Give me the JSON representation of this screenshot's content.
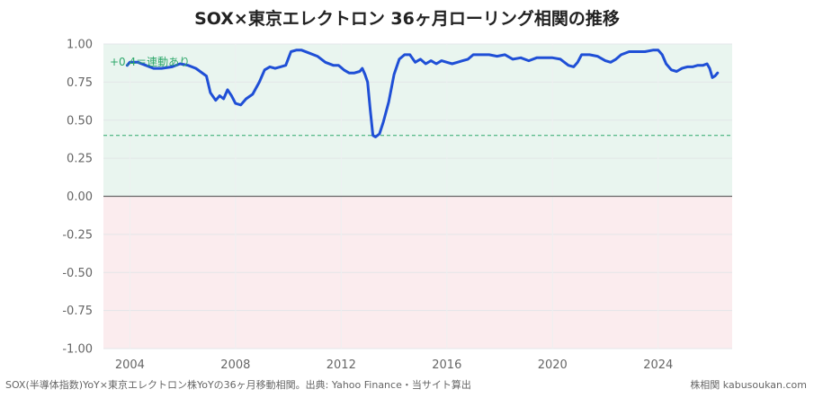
{
  "chart_data": {
    "type": "line",
    "title": "SOX×東京エレクトロン 36ヶ月ローリング相関の推移",
    "xlabel": "",
    "ylabel": "",
    "xlim": [
      2003.0,
      2026.8
    ],
    "ylim": [
      -1.0,
      1.0
    ],
    "x_ticks": [
      2004,
      2008,
      2012,
      2016,
      2020,
      2024
    ],
    "y_ticks": [
      1.0,
      0.75,
      0.5,
      0.25,
      0.0,
      -0.25,
      -0.5,
      -0.75,
      -1.0
    ],
    "y_tick_labels": [
      "1.00",
      "0.75",
      "0.50",
      "0.25",
      "0.00",
      "-0.25",
      "-0.50",
      "-0.75",
      "-1.00"
    ],
    "grid": true,
    "threshold": {
      "value": 0.4,
      "label": "+0.4＝連動あり",
      "color": "#2ea86b"
    },
    "zero_line": 0.0,
    "positive_zone_color": "#e9f5ef",
    "negative_zone_color": "#fbecee",
    "series": [
      {
        "color": "#1f4fd6",
        "x": [
          2003.9,
          2004.0,
          2004.3,
          2004.6,
          2004.9,
          2005.2,
          2005.6,
          2005.9,
          2006.2,
          2006.5,
          2006.9,
          2007.05,
          2007.25,
          2007.4,
          2007.55,
          2007.7,
          2007.85,
          2008.0,
          2008.2,
          2008.4,
          2008.65,
          2008.9,
          2009.1,
          2009.3,
          2009.5,
          2009.7,
          2009.9,
          2010.1,
          2010.3,
          2010.5,
          2010.8,
          2011.1,
          2011.4,
          2011.7,
          2011.9,
          2012.1,
          2012.3,
          2012.5,
          2012.7,
          2012.8,
          2012.9,
          2013.0,
          2013.1,
          2013.2,
          2013.3,
          2013.45,
          2013.6,
          2013.8,
          2014.0,
          2014.2,
          2014.4,
          2014.6,
          2014.8,
          2015.0,
          2015.2,
          2015.4,
          2015.6,
          2015.8,
          2016.0,
          2016.2,
          2016.4,
          2016.6,
          2016.8,
          2017.0,
          2017.3,
          2017.6,
          2017.9,
          2018.2,
          2018.5,
          2018.8,
          2019.1,
          2019.4,
          2019.7,
          2020.0,
          2020.3,
          2020.6,
          2020.8,
          2020.95,
          2021.1,
          2021.4,
          2021.7,
          2022.0,
          2022.2,
          2022.4,
          2022.6,
          2022.9,
          2023.2,
          2023.5,
          2023.8,
          2024.0,
          2024.15,
          2024.3,
          2024.5,
          2024.7,
          2024.9,
          2025.1,
          2025.3,
          2025.5,
          2025.7,
          2025.85,
          2025.95,
          2026.05,
          2026.15,
          2026.25
        ],
        "y": [
          0.86,
          0.88,
          0.88,
          0.86,
          0.84,
          0.84,
          0.85,
          0.87,
          0.86,
          0.84,
          0.79,
          0.68,
          0.63,
          0.66,
          0.64,
          0.7,
          0.66,
          0.61,
          0.6,
          0.64,
          0.67,
          0.75,
          0.83,
          0.85,
          0.84,
          0.85,
          0.86,
          0.95,
          0.96,
          0.96,
          0.94,
          0.92,
          0.88,
          0.86,
          0.86,
          0.83,
          0.81,
          0.81,
          0.82,
          0.84,
          0.8,
          0.75,
          0.57,
          0.4,
          0.39,
          0.41,
          0.49,
          0.62,
          0.8,
          0.9,
          0.93,
          0.93,
          0.88,
          0.9,
          0.87,
          0.89,
          0.87,
          0.89,
          0.88,
          0.87,
          0.88,
          0.89,
          0.9,
          0.93,
          0.93,
          0.93,
          0.92,
          0.93,
          0.9,
          0.91,
          0.89,
          0.91,
          0.91,
          0.91,
          0.9,
          0.86,
          0.85,
          0.88,
          0.93,
          0.93,
          0.92,
          0.89,
          0.88,
          0.9,
          0.93,
          0.95,
          0.95,
          0.95,
          0.96,
          0.96,
          0.93,
          0.87,
          0.83,
          0.82,
          0.84,
          0.85,
          0.85,
          0.86,
          0.86,
          0.87,
          0.84,
          0.78,
          0.79,
          0.81
        ]
      }
    ]
  },
  "footer": {
    "source": "SOX(半導体指数)YoY×東京エレクトロン株YoYの36ヶ月移動相関。出典: Yahoo Finance・当サイト算出",
    "brand": "株相関 kabusoukan.com"
  }
}
